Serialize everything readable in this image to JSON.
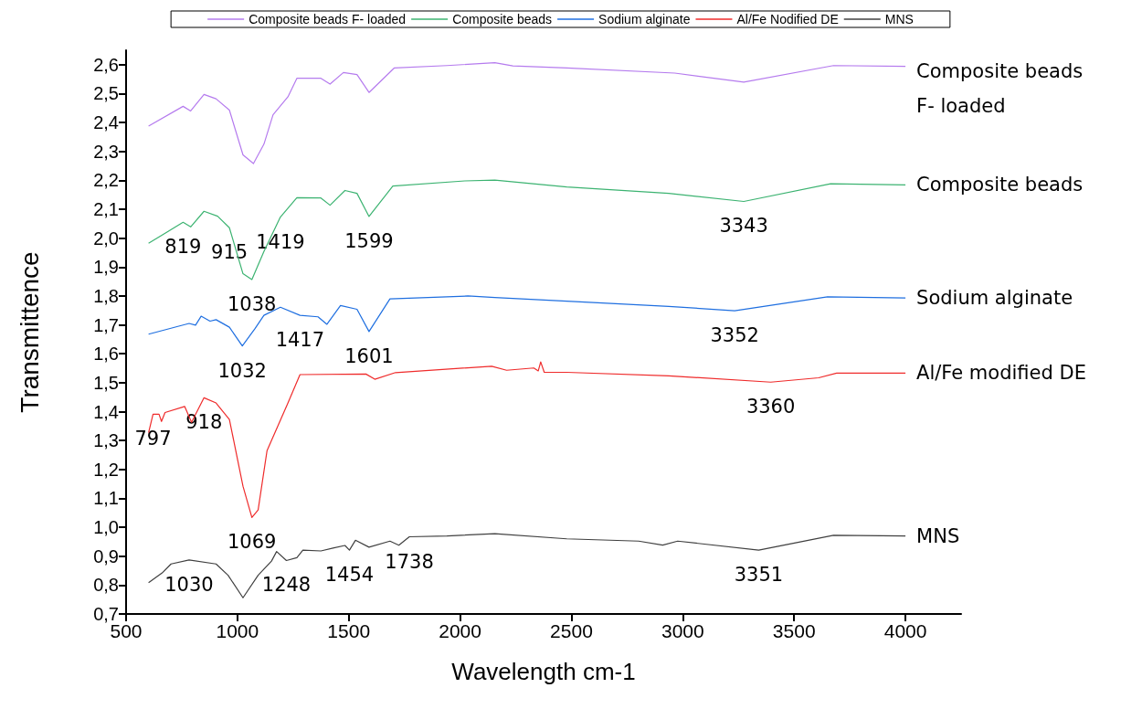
{
  "chart_data": {
    "type": "line",
    "xlabel": "Wavelength cm-1",
    "ylabel": "Transmittence",
    "xlim": [
      500,
      4250
    ],
    "ylim": [
      0.7,
      2.65
    ],
    "xticks": [
      500,
      1000,
      1500,
      2000,
      2500,
      3000,
      3500,
      4000
    ],
    "yticks": [
      {
        "value": 0.7,
        "label": "0,7"
      },
      {
        "value": 0.8,
        "label": "0,8"
      },
      {
        "value": 0.9,
        "label": "0,9"
      },
      {
        "value": 1.0,
        "label": "1,0"
      },
      {
        "value": 1.1,
        "label": "1,1"
      },
      {
        "value": 1.2,
        "label": "1,2"
      },
      {
        "value": 1.3,
        "label": "1,3"
      },
      {
        "value": 1.4,
        "label": "1,4"
      },
      {
        "value": 1.5,
        "label": "1,5"
      },
      {
        "value": 1.6,
        "label": "1,6"
      },
      {
        "value": 1.7,
        "label": "1,7"
      },
      {
        "value": 1.8,
        "label": "1,8"
      },
      {
        "value": 1.9,
        "label": "1,9"
      },
      {
        "value": 2.0,
        "label": "2,0"
      },
      {
        "value": 2.1,
        "label": "2,1"
      },
      {
        "value": 2.2,
        "label": "2,2"
      },
      {
        "value": 2.3,
        "label": "2,3"
      },
      {
        "value": 2.4,
        "label": "2,4"
      },
      {
        "value": 2.5,
        "label": "2,5"
      },
      {
        "value": 2.6,
        "label": "2,6"
      }
    ],
    "legend": "top",
    "grid": false,
    "series": [
      {
        "name": "Composite beads F- loaded",
        "color": "#b57bee",
        "x": [
          601,
          756,
          790,
          850,
          904,
          964,
          1025,
          1072,
          1119,
          1160,
          1227,
          1267,
          1375,
          1416,
          1476,
          1537,
          1591,
          1705,
          1941,
          2156,
          2237,
          2479,
          2964,
          3274,
          3677,
          4000
        ],
        "values": [
          2.388,
          2.456,
          2.44,
          2.497,
          2.482,
          2.443,
          2.288,
          2.258,
          2.325,
          2.427,
          2.489,
          2.553,
          2.553,
          2.533,
          2.573,
          2.566,
          2.504,
          2.589,
          2.597,
          2.607,
          2.596,
          2.589,
          2.571,
          2.54,
          2.597,
          2.594
        ]
      },
      {
        "name": "Composite beads",
        "color": "#3cb371",
        "x": [
          601,
          756,
          790,
          850,
          911,
          964,
          1025,
          1065,
          1119,
          1193,
          1267,
          1375,
          1416,
          1483,
          1537,
          1591,
          1698,
          2021,
          2156,
          2479,
          2937,
          3274,
          3664,
          4000
        ],
        "values": [
          1.982,
          2.055,
          2.039,
          2.093,
          2.076,
          2.036,
          1.877,
          1.857,
          1.954,
          2.073,
          2.14,
          2.139,
          2.114,
          2.165,
          2.155,
          2.075,
          2.18,
          2.198,
          2.201,
          2.177,
          2.155,
          2.127,
          2.188,
          2.184
        ]
      },
      {
        "name": "Sodium alginate",
        "color": "#1f6fe0",
        "x": [
          601,
          783,
          812,
          837,
          877,
          904,
          964,
          1022,
          1079,
          1119,
          1193,
          1281,
          1362,
          1402,
          1463,
          1537,
          1591,
          1685,
          2035,
          2156,
          2479,
          2937,
          3233,
          3650,
          4000
        ],
        "values": [
          1.668,
          1.705,
          1.699,
          1.73,
          1.713,
          1.718,
          1.692,
          1.627,
          1.687,
          1.733,
          1.761,
          1.733,
          1.728,
          1.702,
          1.767,
          1.754,
          1.677,
          1.79,
          1.8,
          1.795,
          1.782,
          1.764,
          1.749,
          1.797,
          1.793
        ]
      },
      {
        "name": "Al/Fe Nodified DE",
        "color": "#ef2b2b",
        "x": [
          601,
          621,
          648,
          659,
          675,
          763,
          794,
          850,
          904,
          964,
          1025,
          1065,
          1093,
          1133,
          1227,
          1281,
          1577,
          1617,
          1710,
          2142,
          2209,
          2331,
          2351,
          2362,
          2378,
          2479,
          2937,
          3395,
          3610,
          3691,
          4000
        ],
        "values": [
          1.327,
          1.391,
          1.391,
          1.366,
          1.397,
          1.418,
          1.363,
          1.448,
          1.43,
          1.373,
          1.142,
          1.034,
          1.06,
          1.265,
          1.43,
          1.528,
          1.53,
          1.512,
          1.535,
          1.557,
          1.543,
          1.551,
          1.541,
          1.572,
          1.536,
          1.536,
          1.524,
          1.502,
          1.517,
          1.533,
          1.533
        ]
      },
      {
        "name": "MNS",
        "color": "#404040",
        "x": [
          601,
          662,
          702,
          783,
          904,
          958,
          1025,
          1093,
          1153,
          1176,
          1220,
          1267,
          1294,
          1375,
          1429,
          1483,
          1503,
          1530,
          1591,
          1685,
          1725,
          1772,
          1941,
          2156,
          2479,
          2802,
          2910,
          2977,
          3341,
          3677,
          4000
        ],
        "values": [
          0.808,
          0.842,
          0.873,
          0.887,
          0.873,
          0.834,
          0.756,
          0.834,
          0.883,
          0.916,
          0.885,
          0.895,
          0.921,
          0.918,
          0.928,
          0.937,
          0.921,
          0.955,
          0.931,
          0.952,
          0.938,
          0.967,
          0.97,
          0.978,
          0.96,
          0.952,
          0.938,
          0.952,
          0.921,
          0.972,
          0.97
        ]
      }
    ],
    "annotations": [
      {
        "text": "Composite beads\nF- loaded",
        "x": 4000,
        "y": 2.594
      },
      {
        "text": "Composite beads",
        "x": 4000,
        "y": 2.184
      },
      {
        "text": "Sodium alginate",
        "x": 4000,
        "y": 1.793
      },
      {
        "text": "Al/Fe modified DE",
        "x": 4000,
        "y": 1.533
      },
      {
        "text": "MNS",
        "x": 4000,
        "y": 0.97
      },
      {
        "text": "915",
        "x": 964,
        "y": 2.036
      },
      {
        "text": "819",
        "x": 756,
        "y": 2.055
      },
      {
        "text": "1419",
        "x": 1193,
        "y": 2.073
      },
      {
        "text": "1599",
        "x": 1591,
        "y": 2.075
      },
      {
        "text": "1038",
        "x": 1065,
        "y": 1.857
      },
      {
        "text": "3343",
        "x": 3274,
        "y": 2.127
      },
      {
        "text": "1417",
        "x": 1281,
        "y": 1.733
      },
      {
        "text": "1601",
        "x": 1591,
        "y": 1.677
      },
      {
        "text": "1032",
        "x": 1022,
        "y": 1.627
      },
      {
        "text": "3352",
        "x": 3233,
        "y": 1.749
      },
      {
        "text": "797",
        "x": 621,
        "y": 1.391
      },
      {
        "text": "918",
        "x": 850,
        "y": 1.448
      },
      {
        "text": "1069",
        "x": 1065,
        "y": 1.034
      },
      {
        "text": "3360",
        "x": 3395,
        "y": 1.502
      },
      {
        "text": "1030",
        "x": 783,
        "y": 0.887
      },
      {
        "text": "1248",
        "x": 1220,
        "y": 0.885
      },
      {
        "text": "1454",
        "x": 1503,
        "y": 0.921
      },
      {
        "text": "1738",
        "x": 1772,
        "y": 0.967
      },
      {
        "text": "3351",
        "x": 3341,
        "y": 0.921
      }
    ]
  }
}
